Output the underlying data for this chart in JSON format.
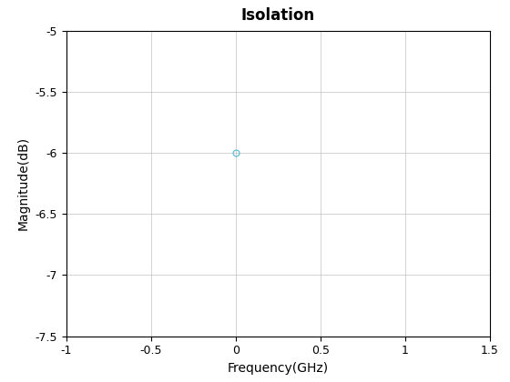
{
  "title": "Isolation",
  "xlabel": "Frequency(GHz)",
  "ylabel": "Magnitude(dB)",
  "x": [
    0
  ],
  "y": [
    -6
  ],
  "marker": "o",
  "marker_color": "#4DB8D4",
  "marker_facecolor": "none",
  "marker_size": 5,
  "marker_linewidth": 0.8,
  "xlim": [
    -1,
    1.5
  ],
  "ylim": [
    -7.5,
    -5
  ],
  "xticks": [
    -1,
    -0.5,
    0,
    0.5,
    1,
    1.5
  ],
  "yticks": [
    -7.5,
    -7,
    -6.5,
    -6,
    -5.5,
    -5
  ],
  "grid": true,
  "grid_color": "#c0c0c0",
  "grid_linewidth": 0.5,
  "background_color": "#ffffff",
  "title_fontsize": 12,
  "label_fontsize": 10,
  "tick_fontsize": 9
}
